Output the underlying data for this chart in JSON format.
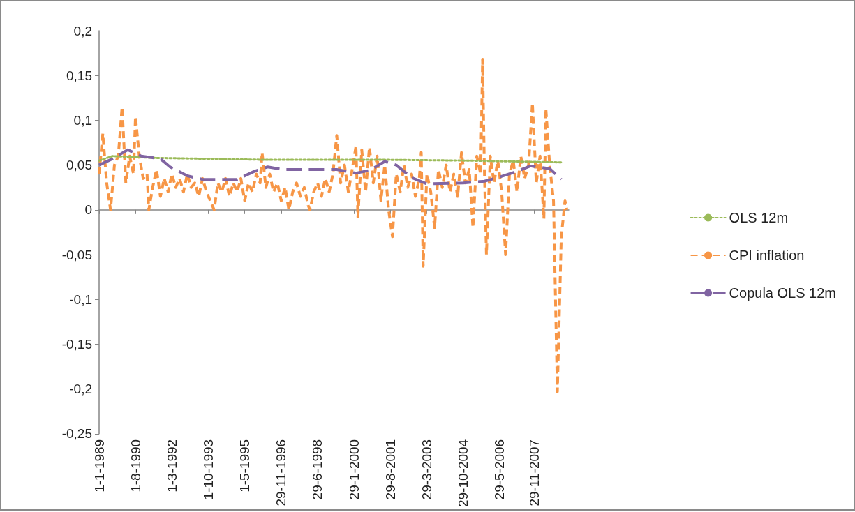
{
  "chart_data": {
    "type": "line",
    "legend": "right",
    "marker": "none",
    "xlim": [
      "1989-01-01",
      "2009-06-01"
    ],
    "xticks": [
      {
        "value": "1989-01-01",
        "label": "1-1-1989"
      },
      {
        "value": "1990-08-01",
        "label": "1-8-1990"
      },
      {
        "value": "1992-03-01",
        "label": "1-3-1992"
      },
      {
        "value": "1993-10-01",
        "label": "1-10-1993"
      },
      {
        "value": "1995-05-01",
        "label": "1-5-1995"
      },
      {
        "value": "1996-11-29",
        "label": "29-11-1996"
      },
      {
        "value": "1998-06-29",
        "label": "29-6-1998"
      },
      {
        "value": "2000-01-29",
        "label": "29-1-2000"
      },
      {
        "value": "2001-08-29",
        "label": "29-8-2001"
      },
      {
        "value": "2003-03-29",
        "label": "29-3-2003"
      },
      {
        "value": "2004-10-29",
        "label": "29-10-2004"
      },
      {
        "value": "2006-05-29",
        "label": "29-5-2006"
      },
      {
        "value": "2007-11-29",
        "label": "29-11-2007"
      }
    ],
    "ylim": [
      -0.25,
      0.2
    ],
    "yticks": [
      {
        "value": -0.25,
        "label": "-0,25"
      },
      {
        "value": -0.2,
        "label": "-0,2"
      },
      {
        "value": -0.15,
        "label": "-0,15"
      },
      {
        "value": -0.1,
        "label": "-0,1"
      },
      {
        "value": -0.05,
        "label": "-0,05"
      },
      {
        "value": 0,
        "label": "0"
      },
      {
        "value": 0.05,
        "label": "0,05"
      },
      {
        "value": 0.1,
        "label": "0,1"
      },
      {
        "value": 0.15,
        "label": "0,15"
      },
      {
        "value": 0.2,
        "label": "0,2"
      }
    ],
    "series": [
      {
        "name": "OLS 12m",
        "color": "#9bbb59",
        "line_style": "dotted",
        "x": [
          "1989-01",
          "1989-08",
          "1991-06",
          "1996-01",
          "2001-01",
          "2005-01",
          "2009-02"
        ],
        "values": [
          0.055,
          0.06,
          0.058,
          0.056,
          0.056,
          0.055,
          0.053
        ]
      },
      {
        "name": "CPI inflation",
        "color": "#f79646",
        "line_style": "dashed",
        "x": [
          "1989-01",
          "1989-03",
          "1989-05",
          "1989-07",
          "1989-09",
          "1989-11",
          "1990-01",
          "1990-03",
          "1990-05",
          "1990-07",
          "1990-08",
          "1990-10",
          "1990-12",
          "1991-02",
          "1991-03",
          "1991-05",
          "1991-07",
          "1991-09",
          "1991-11",
          "1992-01",
          "1992-03",
          "1992-05",
          "1992-07",
          "1992-09",
          "1992-11",
          "1993-01",
          "1993-03",
          "1993-05",
          "1993-07",
          "1993-09",
          "1993-11",
          "1994-01",
          "1994-03",
          "1994-05",
          "1994-07",
          "1994-09",
          "1994-11",
          "1995-01",
          "1995-03",
          "1995-05",
          "1995-07",
          "1995-09",
          "1995-11",
          "1996-01",
          "1996-02",
          "1996-04",
          "1996-06",
          "1996-08",
          "1996-10",
          "1996-12",
          "1997-02",
          "1997-04",
          "1997-06",
          "1997-08",
          "1997-10",
          "1997-12",
          "1998-02",
          "1998-03",
          "1998-05",
          "1998-07",
          "1998-09",
          "1998-11",
          "1999-01",
          "1999-03",
          "1999-05",
          "1999-07",
          "1999-09",
          "1999-11",
          "2000-01",
          "2000-03",
          "2000-04",
          "2000-06",
          "2000-08",
          "2000-10",
          "2000-12",
          "2001-02",
          "2001-04",
          "2001-06",
          "2001-08",
          "2001-10",
          "2001-12",
          "2002-02",
          "2002-04",
          "2002-06",
          "2002-08",
          "2002-10",
          "2002-12",
          "2003-01",
          "2003-02",
          "2003-04",
          "2003-06",
          "2003-08",
          "2003-10",
          "2003-12",
          "2004-02",
          "2004-04",
          "2004-06",
          "2004-08",
          "2004-10",
          "2004-12",
          "2005-02",
          "2005-04",
          "2005-06",
          "2005-08",
          "2005-09",
          "2005-10",
          "2005-11",
          "2006-01",
          "2006-03",
          "2006-05",
          "2006-07",
          "2006-09",
          "2006-11",
          "2007-01",
          "2007-03",
          "2007-05",
          "2007-07",
          "2007-09",
          "2007-11",
          "2008-01",
          "2008-03",
          "2008-05",
          "2008-06",
          "2008-08",
          "2008-10",
          "2008-12",
          "2009-02",
          "2009-04",
          "2009-05"
        ],
        "values": [
          0.04,
          0.085,
          0.03,
          0.0,
          0.05,
          0.06,
          0.115,
          0.03,
          0.06,
          0.04,
          0.104,
          0.06,
          0.035,
          0.04,
          0.0,
          0.025,
          0.045,
          0.015,
          0.035,
          0.02,
          0.04,
          0.025,
          0.035,
          0.02,
          0.04,
          0.025,
          0.03,
          0.015,
          0.035,
          0.02,
          0.01,
          0.0,
          0.03,
          0.02,
          0.035,
          0.015,
          0.03,
          0.02,
          0.035,
          0.01,
          0.03,
          0.02,
          0.04,
          0.03,
          0.064,
          0.025,
          0.04,
          0.02,
          0.03,
          0.01,
          0.025,
          0.0,
          0.02,
          0.03,
          0.015,
          0.025,
          0.005,
          0.0,
          0.02,
          0.03,
          0.015,
          0.035,
          0.02,
          0.04,
          0.083,
          0.03,
          0.05,
          0.02,
          0.045,
          0.071,
          -0.008,
          0.067,
          0.02,
          0.07,
          0.03,
          0.06,
          0.01,
          0.05,
          0.0,
          -0.03,
          0.04,
          0.02,
          0.05,
          0.025,
          0.04,
          0.015,
          0.035,
          0.064,
          -0.063,
          0.04,
          0.02,
          -0.02,
          0.045,
          0.025,
          0.05,
          0.02,
          0.04,
          0.015,
          0.064,
          0.03,
          0.045,
          -0.02,
          0.06,
          0.04,
          0.168,
          0.04,
          -0.05,
          0.06,
          0.03,
          0.055,
          0.02,
          -0.05,
          0.04,
          0.055,
          0.02,
          0.06,
          0.035,
          0.05,
          0.119,
          0.03,
          0.06,
          -0.01,
          0.113,
          0.05,
          0.01,
          -0.203,
          -0.03,
          0.01,
          0.0
        ]
      },
      {
        "name": "Copula OLS 12m",
        "color": "#8064a2",
        "line_style": "dashed",
        "x": [
          "1989-01",
          "1989-08",
          "1990-04",
          "1990-11",
          "1991-09",
          "1992-02",
          "1992-11",
          "1993-07",
          "1995-01",
          "1995-10",
          "1996-05",
          "1997-01",
          "1997-11",
          "1999-05",
          "2000-03",
          "2000-10",
          "2001-06",
          "2001-12",
          "2002-08",
          "2003-04",
          "2004-11",
          "2005-10",
          "2006-05",
          "2007-03",
          "2007-10",
          "2008-08",
          "2009-02"
        ],
        "values": [
          0.05,
          0.057,
          0.067,
          0.06,
          0.057,
          0.048,
          0.038,
          0.034,
          0.034,
          0.043,
          0.048,
          0.045,
          0.045,
          0.045,
          0.041,
          0.044,
          0.054,
          0.05,
          0.036,
          0.029,
          0.03,
          0.032,
          0.036,
          0.043,
          0.049,
          0.046,
          0.034
        ]
      }
    ]
  }
}
